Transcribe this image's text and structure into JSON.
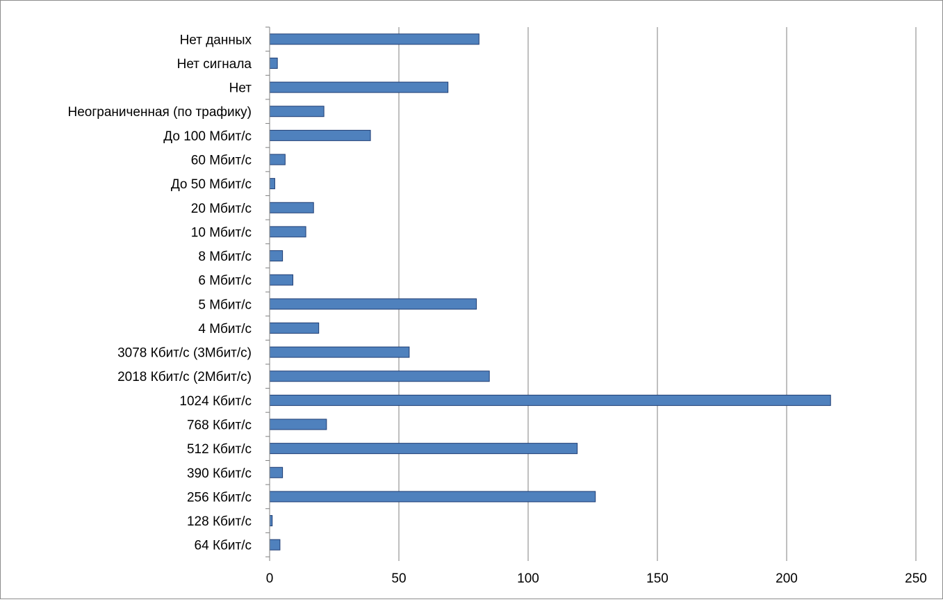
{
  "chart_data": {
    "type": "bar",
    "orientation": "horizontal",
    "categories": [
      "Нет данных",
      "Нет сигнала",
      "Нет",
      "Неограниченная (по трафику)",
      "До 100 Мбит/с",
      "60 Мбит/с",
      "До 50 Мбит/с",
      "20 Мбит/с",
      "10 Мбит/с",
      "8 Мбит/с",
      "6 Мбит/с",
      "5 Мбит/с",
      "4 Мбит/с",
      "3078 Кбит/с (3Мбит/с)",
      "2018 Кбит/с (2Мбит/с)",
      "1024 Кбит/с",
      "768 Кбит/с",
      "512 Кбит/с",
      "390 Кбит/с",
      "256 Кбит/с",
      "128 Кбит/с",
      "64 Кбит/с"
    ],
    "values": [
      81,
      3,
      69,
      21,
      39,
      6,
      2,
      17,
      14,
      5,
      9,
      80,
      19,
      54,
      85,
      217,
      22,
      119,
      5,
      126,
      1,
      4
    ],
    "xlim": [
      0,
      250
    ],
    "xticks": [
      "0",
      "50",
      "100",
      "150",
      "200",
      "250"
    ],
    "grid": "vertical",
    "legend": "none",
    "colors": {
      "bar_fill": "#4f81bd",
      "bar_stroke": "#1f3d73",
      "grid": "#7f7f7f",
      "axis": "#7f7f7f"
    }
  }
}
